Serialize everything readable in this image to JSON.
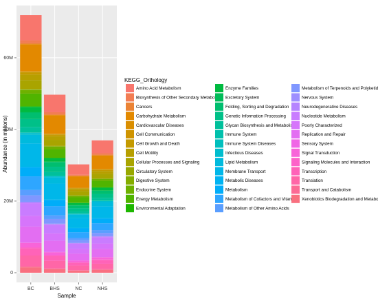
{
  "chart_data": {
    "type": "stacked_bar",
    "x_label": "Sample",
    "y_label": "Abundance (in millions)",
    "legend_title": "KEGG_Orthology",
    "categories": [
      "BC",
      "BHS",
      "NC",
      "NHS"
    ],
    "ylim": [
      -2.7,
      74.6
    ],
    "yticks": [
      0,
      {
        "value": 20,
        "label": "20M"
      },
      {
        "value": 40,
        "label": "40M"
      },
      {
        "value": 60,
        "label": "60M"
      }
    ],
    "grid": true,
    "legend": "right",
    "series": [
      {
        "name": "Amino Acid Metabolism",
        "color": "#F8766D",
        "values": [
          7.0,
          4.9,
          2.9,
          3.6
        ]
      },
      {
        "name": "Biosynthesis of Other Secondary Metabolites",
        "color": "#F27D53",
        "values": [
          0.8,
          0.6,
          0.3,
          0.4
        ]
      },
      {
        "name": "Cancers",
        "color": "#EB8335",
        "values": [
          0.3,
          0.2,
          0.1,
          0.2
        ]
      },
      {
        "name": "Carbohydrate Metabolism",
        "color": "#E38900",
        "values": [
          7.5,
          5.2,
          3.2,
          3.8
        ]
      },
      {
        "name": "Cardiovascular Diseases",
        "color": "#DA8E00",
        "values": [
          0.2,
          0.1,
          0.1,
          0.1
        ]
      },
      {
        "name": "Cell Communication",
        "color": "#CF9400",
        "values": [
          0.1,
          0.1,
          0.05,
          0.05
        ]
      },
      {
        "name": "Cell Growth and Death",
        "color": "#C49A00",
        "values": [
          0.7,
          0.5,
          0.3,
          0.4
        ]
      },
      {
        "name": "Cell Motility",
        "color": "#B79F00",
        "values": [
          1.5,
          1.0,
          0.6,
          0.8
        ]
      },
      {
        "name": "Cellular Processes and Signaling",
        "color": "#A9A400",
        "values": [
          2.5,
          1.7,
          1.1,
          1.3
        ]
      },
      {
        "name": "Circulatory System",
        "color": "#98A800",
        "values": [
          0.1,
          0.1,
          0.05,
          0.05
        ]
      },
      {
        "name": "Digestive System",
        "color": "#85AD00",
        "values": [
          0.2,
          0.1,
          0.1,
          0.1
        ]
      },
      {
        "name": "Endocrine System",
        "color": "#6EB100",
        "values": [
          1.0,
          0.7,
          0.4,
          0.5
        ]
      },
      {
        "name": "Energy Metabolism",
        "color": "#50B400",
        "values": [
          3.5,
          2.4,
          1.5,
          1.8
        ]
      },
      {
        "name": "Environmental Adaptation",
        "color": "#1DB700",
        "values": [
          0.2,
          0.1,
          0.1,
          0.1
        ]
      },
      {
        "name": "Enzyme Families",
        "color": "#00BA40",
        "values": [
          1.5,
          1.0,
          0.6,
          0.8
        ]
      },
      {
        "name": "Excretory System",
        "color": "#00BC58",
        "values": [
          0.1,
          0.1,
          0.05,
          0.05
        ]
      },
      {
        "name": "Folding, Sorting and Degradation",
        "color": "#00BE6F",
        "values": [
          1.8,
          1.3,
          0.8,
          0.9
        ]
      },
      {
        "name": "Genetic Information Processing",
        "color": "#00C088",
        "values": [
          2.2,
          1.5,
          0.9,
          1.1
        ]
      },
      {
        "name": "Glycan Biosynthesis and Metabolism",
        "color": "#00C09B",
        "values": [
          1.5,
          1.0,
          0.6,
          0.8
        ]
      },
      {
        "name": "Immune System",
        "color": "#00C0AC",
        "values": [
          0.1,
          0.1,
          0.05,
          0.05
        ]
      },
      {
        "name": "Immune System Diseases",
        "color": "#00BFBD",
        "values": [
          0.1,
          0.1,
          0.05,
          0.05
        ]
      },
      {
        "name": "Infectious Diseases",
        "color": "#00BDCE",
        "values": [
          0.5,
          0.3,
          0.2,
          0.3
        ]
      },
      {
        "name": "Lipid Metabolism",
        "color": "#00BADD",
        "values": [
          2.4,
          1.7,
          1.0,
          1.2
        ]
      },
      {
        "name": "Membrane Transport",
        "color": "#00B7E9",
        "values": [
          6.5,
          4.5,
          2.7,
          3.3
        ]
      },
      {
        "name": "Metabolic Diseases",
        "color": "#00B3F2",
        "values": [
          0.2,
          0.1,
          0.1,
          0.1
        ]
      },
      {
        "name": "Metabolism",
        "color": "#00ADF9",
        "values": [
          2.5,
          1.7,
          1.1,
          1.3
        ]
      },
      {
        "name": "Metabolism of Cofactors and Vitamins",
        "color": "#2EA6FF",
        "values": [
          3.8,
          2.6,
          1.6,
          1.9
        ]
      },
      {
        "name": "Metabolism of Other Amino Acids",
        "color": "#5A9EFF",
        "values": [
          1.5,
          1.0,
          0.6,
          0.8
        ]
      },
      {
        "name": "Metabolism of Terpenoids and Polyketides",
        "color": "#8097FF",
        "values": [
          1.8,
          1.3,
          0.8,
          0.9
        ]
      },
      {
        "name": "Nervous System",
        "color": "#9E8FFF",
        "values": [
          0.1,
          0.1,
          0.05,
          0.05
        ]
      },
      {
        "name": "Neurodegenerative Diseases",
        "color": "#B584FF",
        "values": [
          0.3,
          0.2,
          0.1,
          0.2
        ]
      },
      {
        "name": "Nucleotide Metabolism",
        "color": "#C97CFF",
        "values": [
          3.5,
          2.4,
          1.5,
          1.8
        ]
      },
      {
        "name": "Poorly Characterized",
        "color": "#D675FB",
        "values": [
          3.0,
          2.1,
          1.3,
          1.5
        ]
      },
      {
        "name": "Replication and Repair",
        "color": "#E36EF2",
        "values": [
          4.5,
          3.1,
          1.9,
          2.3
        ]
      },
      {
        "name": "Sensory System",
        "color": "#F066E6",
        "values": [
          0.1,
          0.1,
          0.05,
          0.05
        ]
      },
      {
        "name": "Signal Transduction",
        "color": "#F864D9",
        "values": [
          1.2,
          0.8,
          0.5,
          0.6
        ]
      },
      {
        "name": "Signaling Molecules and Interaction",
        "color": "#FD63C9",
        "values": [
          0.3,
          0.2,
          0.1,
          0.2
        ]
      },
      {
        "name": "Transcription",
        "color": "#FF63B8",
        "values": [
          2.0,
          1.4,
          0.8,
          1.0
        ]
      },
      {
        "name": "Translation",
        "color": "#FF66A7",
        "values": [
          3.0,
          2.1,
          1.3,
          1.5
        ]
      },
      {
        "name": "Transport and Catabolism",
        "color": "#FC6A95",
        "values": [
          0.3,
          0.2,
          0.1,
          0.2
        ]
      },
      {
        "name": "Xenobiotics Biodegradation and Metabolism",
        "color": "#F97080",
        "values": [
          1.5,
          1.0,
          0.6,
          0.8
        ]
      }
    ]
  }
}
